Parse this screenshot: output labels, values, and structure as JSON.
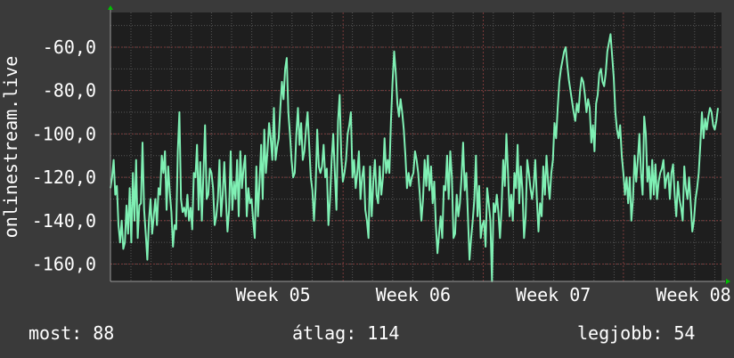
{
  "chart_data": {
    "type": "line",
    "ylabel": "onlinestream.live",
    "y_ticks": [
      "-60,0",
      "-80,0",
      "-100,0",
      "-120,0",
      "-140,0",
      "-160,0"
    ],
    "y_tick_values": [
      -60,
      -80,
      -100,
      -120,
      -140,
      -160
    ],
    "ylim": [
      -168,
      -44
    ],
    "x_ticks": [
      "Week 05",
      "Week 06",
      "Week 07",
      "Week 08"
    ],
    "grid": true,
    "series": [
      {
        "color": "#7ff0b4",
        "values": [
          -125,
          -120,
          -112,
          -128,
          -124,
          -142,
          -150,
          -140,
          -153,
          -150,
          -133,
          -146,
          -125,
          -150,
          -118,
          -140,
          -112,
          -148,
          -133,
          -132,
          -104,
          -135,
          -146,
          -158,
          -140,
          -130,
          -146,
          -138,
          -130,
          -142,
          -125,
          -128,
          -110,
          -118,
          -108,
          -135,
          -115,
          -127,
          -136,
          -152,
          -142,
          -144,
          -108,
          -90,
          -130,
          -136,
          -134,
          -138,
          -128,
          -140,
          -134,
          -144,
          -118,
          -120,
          -105,
          -135,
          -113,
          -140,
          -118,
          -96,
          -130,
          -128,
          -116,
          -118,
          -125,
          -142,
          -138,
          -130,
          -112,
          -138,
          -128,
          -113,
          -130,
          -145,
          -135,
          -108,
          -135,
          -122,
          -130,
          -112,
          -138,
          -108,
          -125,
          -116,
          -110,
          -138,
          -125,
          -132,
          -130,
          -140,
          -148,
          -115,
          -138,
          -122,
          -105,
          -130,
          -98,
          -118,
          -108,
          -95,
          -102,
          -112,
          -88,
          -112,
          -106,
          -102,
          -88,
          -76,
          -84,
          -70,
          -65,
          -90,
          -100,
          -112,
          -120,
          -118,
          -100,
          -88,
          -105,
          -95,
          -112,
          -108,
          -98,
          -90,
          -105,
          -120,
          -126,
          -140,
          -125,
          -98,
          -115,
          -118,
          -115,
          -105,
          -120,
          -116,
          -142,
          -130,
          -112,
          -100,
          -118,
          -135,
          -94,
          -82,
          -110,
          -122,
          -118,
          -112,
          -100,
          -96,
          -90,
          -120,
          -112,
          -125,
          -118,
          -108,
          -130,
          -120,
          -115,
          -135,
          -140,
          -148,
          -115,
          -138,
          -122,
          -112,
          -128,
          -132,
          -115,
          -128,
          -120,
          -102,
          -118,
          -112,
          -118,
          -94,
          -76,
          -62,
          -72,
          -86,
          -92,
          -84,
          -90,
          -98,
          -110,
          -125,
          -118,
          -124,
          -120,
          -118,
          -108,
          -112,
          -118,
          -128,
          -140,
          -130,
          -112,
          -124,
          -110,
          -126,
          -115,
          -132,
          -122,
          -142,
          -155,
          -146,
          -138,
          -148,
          -124,
          -126,
          -110,
          -130,
          -108,
          -120,
          -148,
          -146,
          -128,
          -138,
          -132,
          -120,
          -104,
          -126,
          -118,
          -138,
          -158,
          -148,
          -140,
          -130,
          -110,
          -138,
          -124,
          -148,
          -142,
          -140,
          -152,
          -125,
          -132,
          -140,
          -168,
          -132,
          -136,
          -128,
          -136,
          -148,
          -134,
          -112,
          -124,
          -100,
          -118,
          -138,
          -128,
          -140,
          -118,
          -125,
          -105,
          -132,
          -115,
          -126,
          -148,
          -138,
          -112,
          -118,
          -125,
          -130,
          -124,
          -112,
          -130,
          -145,
          -132,
          -138,
          -115,
          -128,
          -110,
          -122,
          -130,
          -118,
          -112,
          -95,
          -102,
          -88,
          -76,
          -70,
          -66,
          -62,
          -60,
          -68,
          -75,
          -80,
          -85,
          -90,
          -94,
          -86,
          -90,
          -80,
          -74,
          -76,
          -82,
          -90,
          -84,
          -88,
          -104,
          -96,
          -108,
          -86,
          -82,
          -72,
          -70,
          -76,
          -78,
          -72,
          -62,
          -58,
          -54,
          -64,
          -74,
          -90,
          -98,
          -102,
          -96,
          -110,
          -118,
          -128,
          -120,
          -132,
          -120,
          -140,
          -130,
          -110,
          -122,
          -112,
          -100,
          -118,
          -128,
          -92,
          -100,
          -122,
          -115,
          -130,
          -112,
          -128,
          -114,
          -130,
          -122,
          -118,
          -116,
          -112,
          -125,
          -120,
          -118,
          -130,
          -118,
          -114,
          -128,
          -138,
          -122,
          -130,
          -134,
          -140,
          -115,
          -125,
          -130,
          -120,
          -132,
          -145,
          -140,
          -130,
          -125,
          -118,
          -105,
          -90,
          -102,
          -93,
          -98,
          -92,
          -88,
          -90,
          -96,
          -98,
          -94,
          -88
        ]
      }
    ]
  },
  "footer": {
    "current_label": "most:",
    "current_value": "88",
    "average_label": "átlag:",
    "average_value": "114",
    "best_label": "legjobb:",
    "best_value": "54"
  },
  "colors": {
    "background": "#3a3a3a",
    "plot_background": "#1e1e1e",
    "series": "#7ff0b4",
    "grid": "#555555",
    "grid_week": "#7a3a3a",
    "arrow": "#00c000"
  }
}
